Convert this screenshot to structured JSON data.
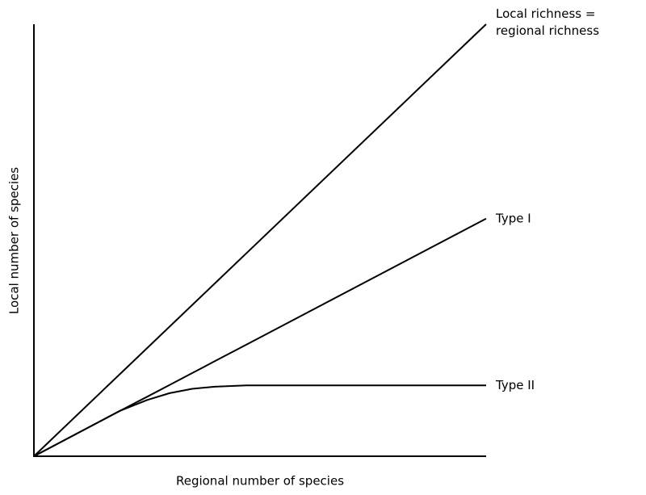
{
  "chart_data": {
    "type": "line",
    "xlabel": "Regional number of species",
    "ylabel": "Local number of species",
    "x": [
      0,
      19,
      25,
      30,
      35,
      40,
      47,
      100
    ],
    "xlim": [
      0,
      100
    ],
    "ylim": [
      0,
      100
    ],
    "series": [
      {
        "name": "Local richness =\nregional richness",
        "color": "#000000",
        "values": [
          0,
          19,
          25,
          30,
          35,
          40,
          47,
          100
        ]
      },
      {
        "name": "Type I",
        "color": "#000000",
        "values": [
          0,
          10.5,
          13.75,
          16.5,
          19.25,
          22,
          25.85,
          55
        ]
      },
      {
        "name": "Type II",
        "color": "#000000",
        "values": [
          0,
          10.5,
          13,
          14.6,
          15.6,
          16.1,
          16.4,
          16.4
        ]
      }
    ]
  }
}
